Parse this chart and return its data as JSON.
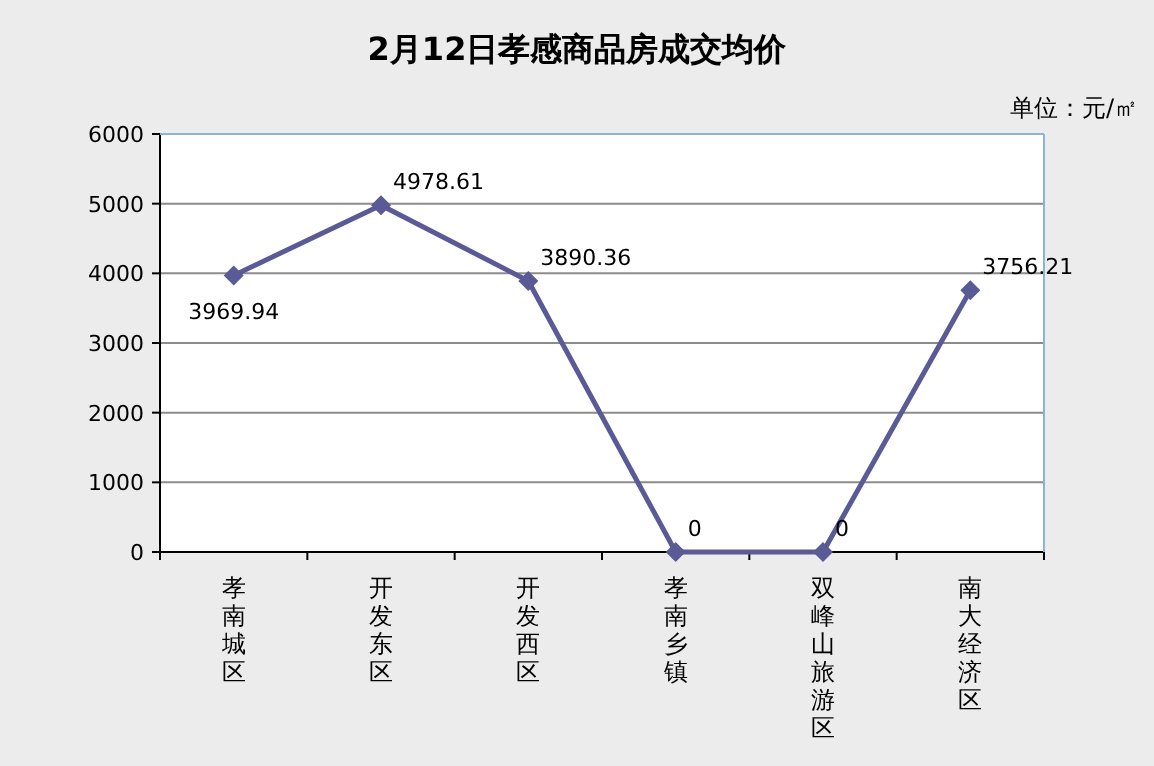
{
  "chart_data": {
    "type": "line",
    "title": "2月12日孝感商品房成交均价",
    "annotations": [
      "单位：元/㎡"
    ],
    "categories": [
      "孝南城区",
      "开发东区",
      "开发西区",
      "孝南乡镇",
      "双峰山旅游区",
      "南大经济区"
    ],
    "series": [
      {
        "color": "#5a5a96",
        "values": [
          3969.94,
          4978.61,
          3890.36,
          0,
          0,
          3756.21
        ]
      }
    ],
    "ylim": [
      0,
      6000
    ],
    "yticks": [
      0,
      1000,
      2000,
      3000,
      4000,
      5000,
      6000
    ],
    "grid": "y",
    "marker": "diamond",
    "line_style": "solid",
    "data_labels": true
  }
}
